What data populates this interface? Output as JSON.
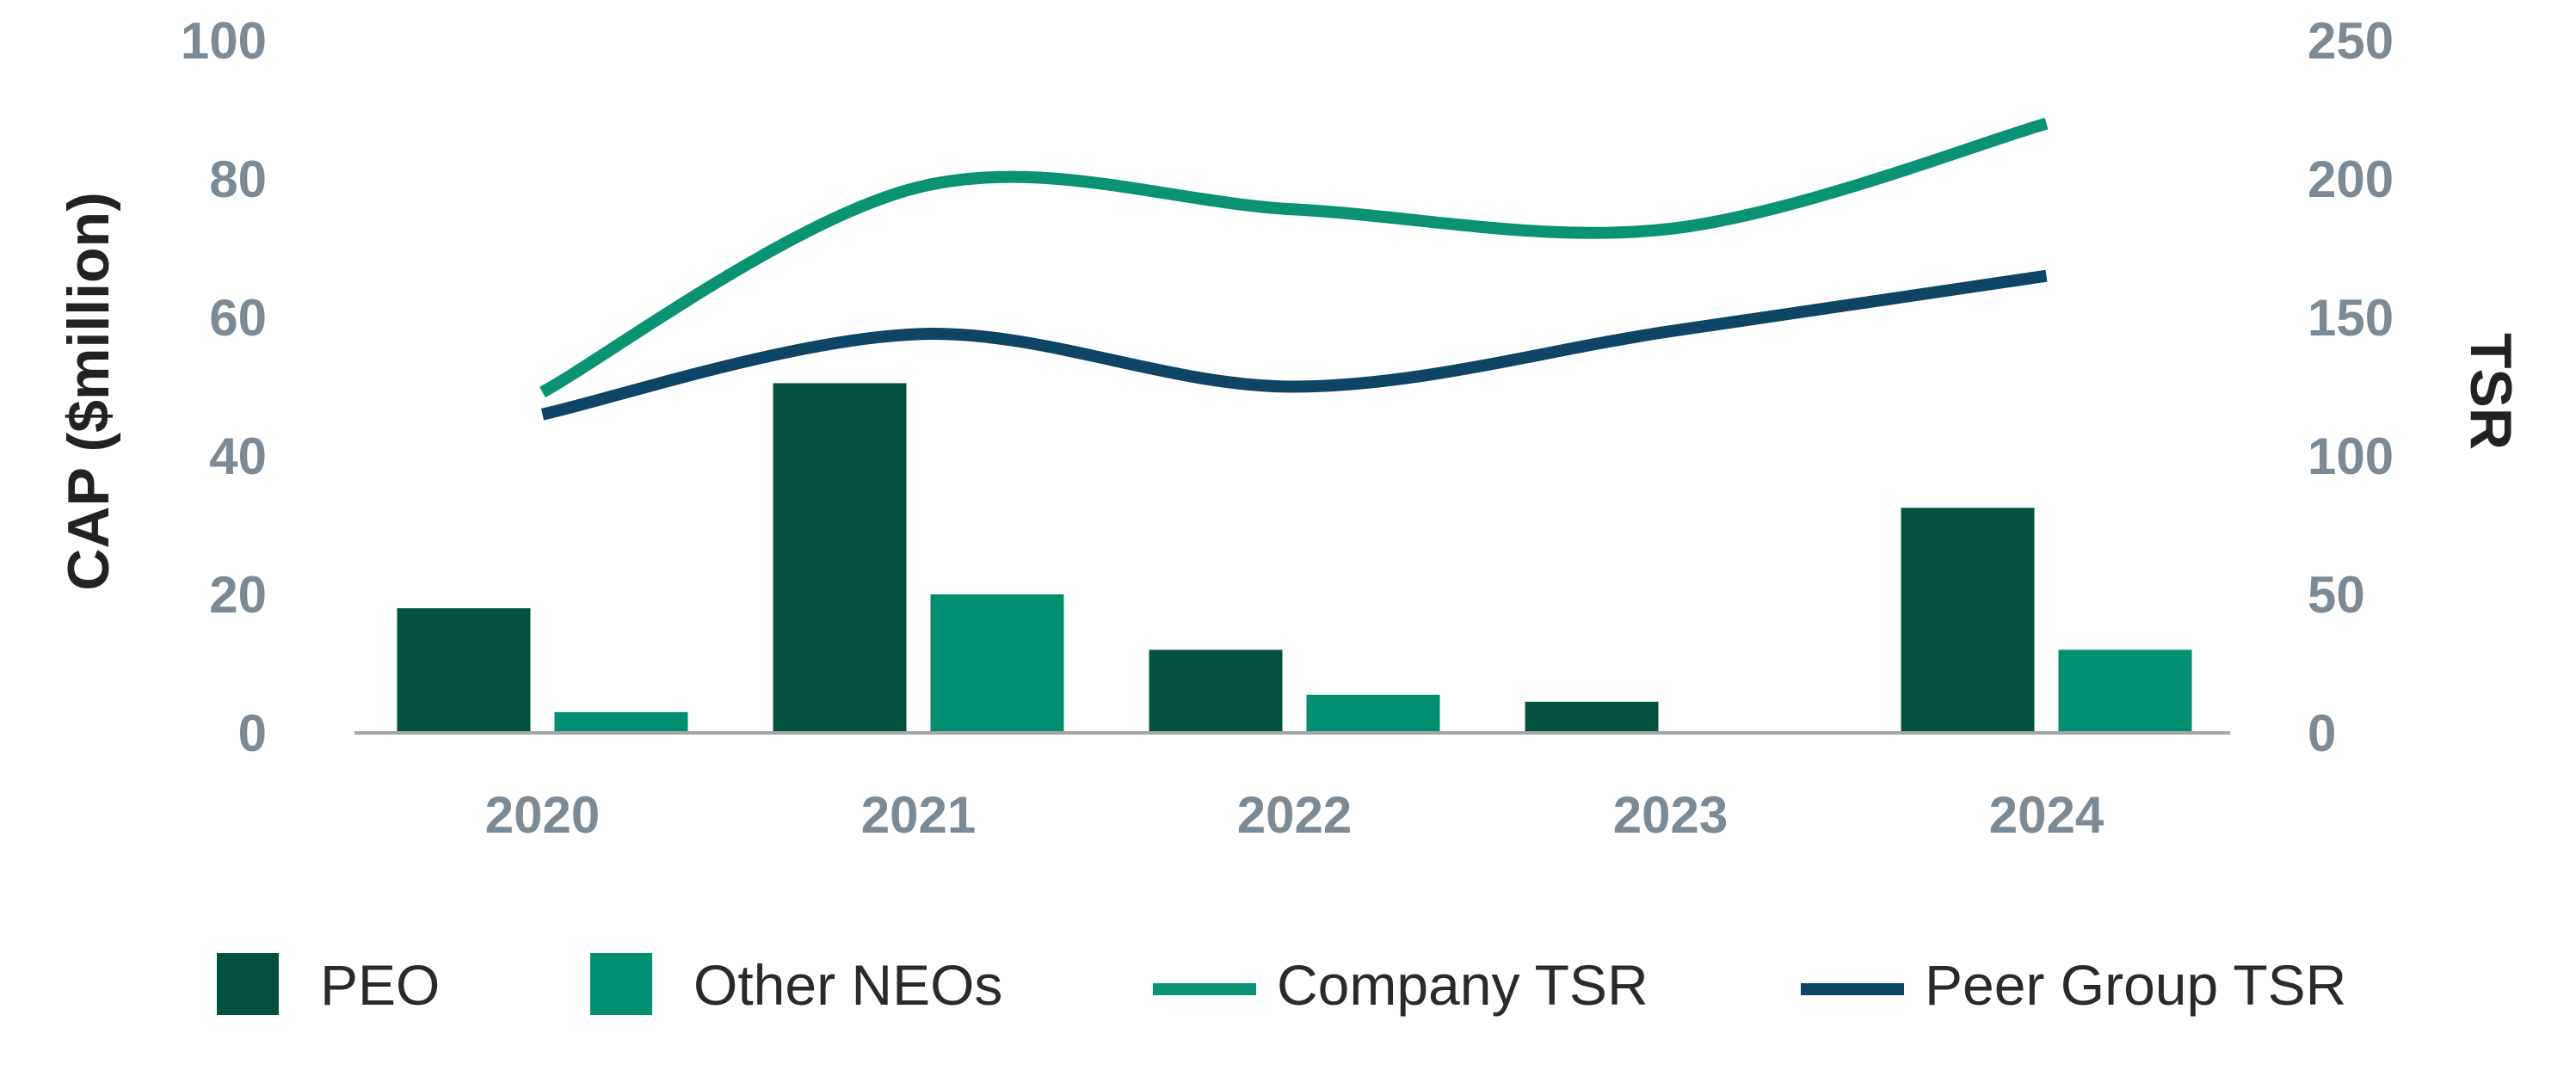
{
  "chart_data": {
    "type": "bar",
    "categories": [
      "2020",
      "2021",
      "2022",
      "2023",
      "2024"
    ],
    "bar_series": [
      {
        "name": "PEO",
        "color": "#035240",
        "values": [
          18,
          50.5,
          12,
          4.5,
          32.5
        ]
      },
      {
        "name": "Other NEOs",
        "color": "#009071",
        "values": [
          3,
          20,
          5.5,
          0,
          12
        ]
      }
    ],
    "line_series": [
      {
        "name": "Company TSR",
        "color": "#0a9274",
        "values": [
          123,
          197,
          189,
          182,
          220
        ]
      },
      {
        "name": "Peer Group TSR",
        "color": "#0e4465",
        "values": [
          115,
          144,
          125,
          145,
          165
        ]
      }
    ],
    "ylabel": "CAP ($million)",
    "y2label": "TSR",
    "ylim": [
      0,
      100
    ],
    "y2lim": [
      0,
      250
    ],
    "yticks": [
      "0",
      "20",
      "40",
      "60",
      "80",
      "100"
    ],
    "y2ticks": [
      "0",
      "50",
      "100",
      "150",
      "200",
      "250"
    ],
    "legend": [
      "PEO",
      "Other NEOs",
      "Company TSR",
      "Peer Group TSR"
    ]
  }
}
